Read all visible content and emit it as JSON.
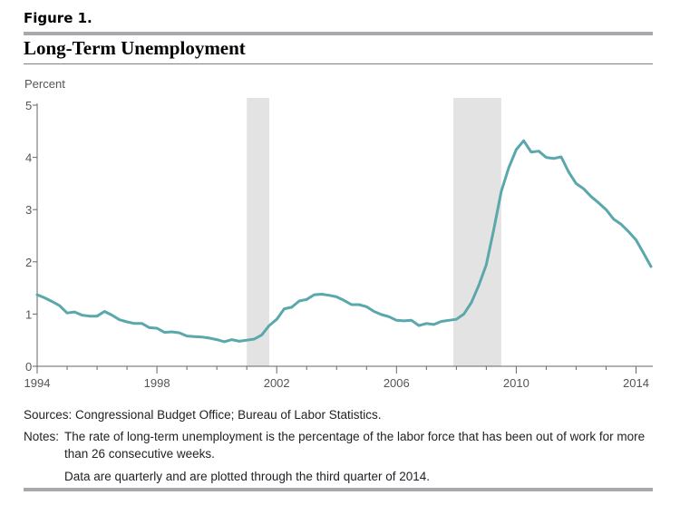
{
  "figure_label": "Figure 1.",
  "chart_data": {
    "type": "line",
    "title": "Long-Term Unemployment",
    "ylabel": "Percent",
    "xlabel": "",
    "ylim": [
      0,
      5
    ],
    "xlim": [
      1994,
      2014.5
    ],
    "yticks": [
      0,
      1,
      2,
      3,
      4,
      5
    ],
    "xticks": [
      1994,
      1998,
      2002,
      2006,
      2010,
      2014
    ],
    "recessions": [
      [
        2001.0,
        2001.75
      ],
      [
        2007.9,
        2009.5
      ]
    ],
    "line_color": "#5aa7ac",
    "recession_color": "#e3e3e3",
    "series": [
      {
        "name": "Long-term unemployment rate",
        "x": [
          1994.0,
          1994.25,
          1994.5,
          1994.75,
          1995.0,
          1995.25,
          1995.5,
          1995.75,
          1996.0,
          1996.25,
          1996.5,
          1996.75,
          1997.0,
          1997.25,
          1997.5,
          1997.75,
          1998.0,
          1998.25,
          1998.5,
          1998.75,
          1999.0,
          1999.25,
          1999.5,
          1999.75,
          2000.0,
          2000.25,
          2000.5,
          2000.75,
          2001.0,
          2001.25,
          2001.5,
          2001.75,
          2002.0,
          2002.25,
          2002.5,
          2002.75,
          2003.0,
          2003.25,
          2003.5,
          2003.75,
          2004.0,
          2004.25,
          2004.5,
          2004.75,
          2005.0,
          2005.25,
          2005.5,
          2005.75,
          2006.0,
          2006.25,
          2006.5,
          2006.75,
          2007.0,
          2007.25,
          2007.5,
          2007.75,
          2008.0,
          2008.25,
          2008.5,
          2008.75,
          2009.0,
          2009.25,
          2009.5,
          2009.75,
          2010.0,
          2010.25,
          2010.5,
          2010.75,
          2011.0,
          2011.25,
          2011.5,
          2011.75,
          2012.0,
          2012.25,
          2012.5,
          2012.75,
          2013.0,
          2013.25,
          2013.5,
          2013.75,
          2014.0,
          2014.25,
          2014.5
        ],
        "values": [
          1.37,
          1.31,
          1.24,
          1.16,
          1.02,
          1.04,
          0.98,
          0.96,
          0.96,
          1.05,
          0.98,
          0.89,
          0.85,
          0.82,
          0.82,
          0.74,
          0.73,
          0.65,
          0.66,
          0.64,
          0.58,
          0.57,
          0.56,
          0.54,
          0.51,
          0.47,
          0.51,
          0.48,
          0.5,
          0.52,
          0.6,
          0.78,
          0.9,
          1.1,
          1.13,
          1.25,
          1.28,
          1.37,
          1.38,
          1.36,
          1.33,
          1.26,
          1.18,
          1.18,
          1.14,
          1.05,
          0.99,
          0.95,
          0.88,
          0.87,
          0.88,
          0.78,
          0.82,
          0.8,
          0.86,
          0.88,
          0.9,
          1.0,
          1.22,
          1.55,
          1.95,
          2.62,
          3.35,
          3.8,
          4.15,
          4.32,
          4.1,
          4.12,
          4.0,
          3.98,
          4.01,
          3.72,
          3.5,
          3.4,
          3.25,
          3.13,
          3.0,
          2.82,
          2.72,
          2.58,
          2.42,
          2.17,
          1.91
        ]
      }
    ]
  },
  "sources": "Sources:  Congressional Budget Office; Bureau of Labor Statistics.",
  "notes_label": "Notes:",
  "notes_text": "The rate of long-term unemployment is the percentage of the labor force that has been out of work for more than 26 consecutive weeks.",
  "notes_text2": "Data are quarterly and are plotted through the third quarter of 2014."
}
